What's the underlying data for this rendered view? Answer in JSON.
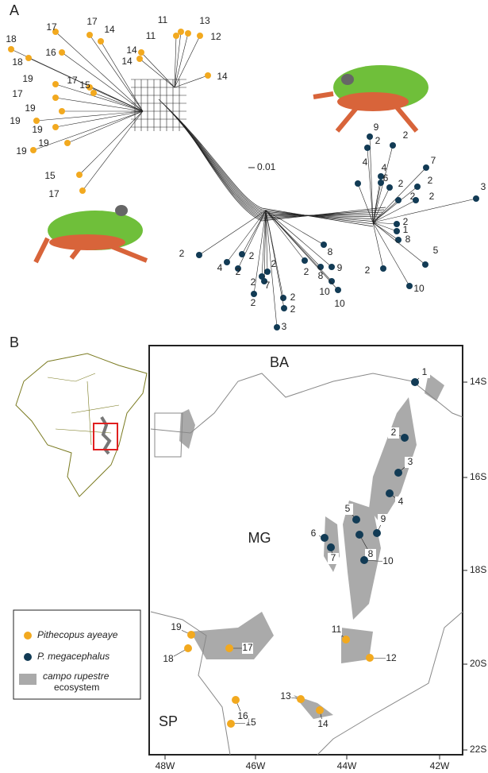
{
  "panel_a": {
    "label": "A",
    "scale_bar": "0.01",
    "ayeaye_tips": [
      "18",
      "18",
      "17",
      "16",
      "17",
      "14",
      "11",
      "13",
      "11",
      "12",
      "14",
      "14",
      "14",
      "19",
      "17",
      "15",
      "17",
      "19",
      "19",
      "19",
      "19",
      "19",
      "15",
      "17"
    ],
    "megacephalus_tips": [
      "9",
      "2",
      "2",
      "7",
      "4",
      "4",
      "6",
      "2",
      "2",
      "2",
      "2",
      "3",
      "2",
      "1",
      "8",
      "5",
      "10",
      "2",
      "2",
      "4",
      "2",
      "2",
      "2",
      "2",
      "7",
      "2",
      "2",
      "2",
      "3",
      "2",
      "8",
      "8",
      "9",
      "10",
      "10"
    ]
  },
  "panel_b": {
    "label": "B",
    "regions": [
      "BA",
      "MG",
      "SP"
    ],
    "lat_ticks": [
      "14S",
      "16S",
      "18S",
      "20S",
      "22S"
    ],
    "lon_ticks": [
      "48W",
      "46W",
      "44W",
      "42W"
    ],
    "megacephalus_sites": [
      "1",
      "2",
      "3",
      "4",
      "5",
      "6",
      "7",
      "8",
      "9",
      "10"
    ],
    "ayeaye_sites": [
      "11",
      "12",
      "13",
      "14",
      "15",
      "16",
      "17",
      "18",
      "19"
    ],
    "legend": {
      "species": [
        "Pithecopus ayeaye",
        "P. megacephalus"
      ],
      "ecosystem": [
        "campo rupestre",
        "ecosystem"
      ]
    }
  }
}
